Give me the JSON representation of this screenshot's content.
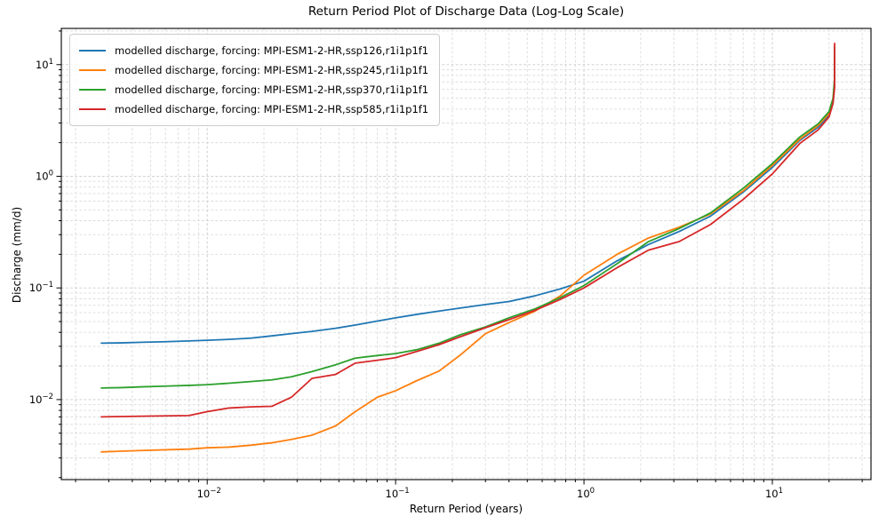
{
  "figure": {
    "title": "Return Period Plot of Discharge Data (Log-Log Scale)",
    "xlabel": "Return Period (years)",
    "ylabel": "Discharge (mm/d)",
    "background_color": "#ffffff",
    "spine_color": "#000000",
    "grid_major_color": "#c9c9c9",
    "grid_minor_color": "#dadada"
  },
  "chart_data": {
    "type": "line",
    "x_scale": "log",
    "y_scale": "log",
    "xlim": [
      0.00168,
      33.4
    ],
    "ylim": [
      0.00192,
      21.1
    ],
    "grid": "both major and minor, dashed",
    "legend_position": "upper left",
    "x_tick_exponents": [
      -2,
      -1,
      0,
      1
    ],
    "y_tick_exponents": [
      1,
      0,
      -1,
      -2
    ],
    "tick_label_base": "10",
    "x": [
      0.00274,
      0.0035,
      0.0045,
      0.006,
      0.008,
      0.01,
      0.013,
      0.017,
      0.022,
      0.028,
      0.036,
      0.048,
      0.061,
      0.08,
      0.1,
      0.13,
      0.17,
      0.22,
      0.3,
      0.4,
      0.55,
      0.75,
      1.0,
      1.5,
      2.2,
      3.2,
      4.7,
      7.0,
      10.0,
      14.0,
      17.5,
      20.0,
      21.0,
      21.4,
      21.4
    ],
    "series": [
      {
        "name": "modelled discharge, forcing: MPI-ESM1-2-HR,ssp126,r1i1p1f1",
        "color": "#1f77b4",
        "values": [
          0.032,
          0.0322,
          0.0326,
          0.033,
          0.0335,
          0.034,
          0.0346,
          0.0355,
          0.0372,
          0.039,
          0.0408,
          0.0435,
          0.0465,
          0.0505,
          0.054,
          0.058,
          0.062,
          0.066,
          0.071,
          0.0755,
          0.085,
          0.098,
          0.115,
          0.175,
          0.245,
          0.32,
          0.44,
          0.72,
          1.2,
          2.1,
          2.75,
          3.5,
          4.6,
          6.5,
          12.5
        ]
      },
      {
        "name": "modelled discharge, forcing: MPI-ESM1-2-HR,ssp245,r1i1p1f1",
        "color": "#ff7f0e",
        "values": [
          0.0034,
          0.00345,
          0.0035,
          0.00355,
          0.0036,
          0.0037,
          0.00375,
          0.0039,
          0.0041,
          0.0044,
          0.0048,
          0.0058,
          0.0078,
          0.0105,
          0.012,
          0.0148,
          0.018,
          0.025,
          0.0389,
          0.049,
          0.062,
          0.085,
          0.13,
          0.2,
          0.28,
          0.35,
          0.46,
          0.74,
          1.25,
          2.15,
          2.85,
          3.65,
          4.8,
          6.8,
          13.0
        ]
      },
      {
        "name": "modelled discharge, forcing: MPI-ESM1-2-HR,ssp370,r1i1p1f1",
        "color": "#2ca02c",
        "values": [
          0.0127,
          0.0128,
          0.013,
          0.0132,
          0.0134,
          0.0136,
          0.014,
          0.0145,
          0.015,
          0.016,
          0.0178,
          0.0205,
          0.0235,
          0.0248,
          0.0258,
          0.028,
          0.032,
          0.038,
          0.0447,
          0.054,
          0.065,
          0.082,
          0.105,
          0.165,
          0.26,
          0.34,
          0.47,
          0.78,
          1.3,
          2.25,
          2.95,
          3.8,
          5.0,
          7.5,
          14.5
        ]
      },
      {
        "name": "modelled discharge, forcing: MPI-ESM1-2-HR,ssp585,r1i1p1f1",
        "color": "#d62728",
        "values": [
          0.007,
          0.00705,
          0.0071,
          0.00715,
          0.0072,
          0.0078,
          0.0084,
          0.0086,
          0.0087,
          0.0105,
          0.0155,
          0.0168,
          0.0212,
          0.0225,
          0.0237,
          0.027,
          0.031,
          0.0365,
          0.044,
          0.052,
          0.063,
          0.079,
          0.1,
          0.152,
          0.218,
          0.26,
          0.37,
          0.62,
          1.05,
          1.97,
          2.6,
          3.4,
          4.5,
          6.2,
          15.5
        ]
      }
    ]
  }
}
